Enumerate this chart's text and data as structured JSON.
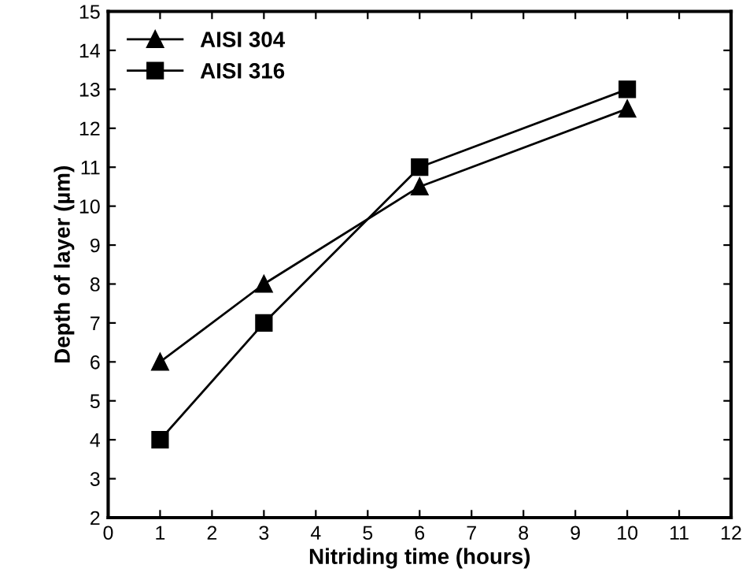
{
  "chart_data": {
    "type": "line",
    "xlabel": "Nitriding time (hours)",
    "ylabel": "Depth of layer (µm)",
    "x": [
      1,
      3,
      6,
      10
    ],
    "series": [
      {
        "name": "AISI 304",
        "color": "#000000",
        "values": [
          6,
          8,
          10.5,
          12.5
        ],
        "marker": "triangle"
      },
      {
        "name": "AISI 316",
        "color": "#000000",
        "values": [
          4,
          7,
          11,
          13
        ],
        "marker": "square"
      }
    ],
    "xlim": [
      0,
      12
    ],
    "xticks": [
      0,
      1,
      2,
      3,
      4,
      5,
      6,
      7,
      8,
      9,
      10,
      11,
      12
    ],
    "ylim": [
      2,
      15
    ],
    "yticks": [
      2,
      3,
      4,
      5,
      6,
      7,
      8,
      9,
      10,
      11,
      12,
      13,
      14,
      15
    ],
    "grid": false,
    "legend": "top left",
    "line_style": "solid"
  }
}
